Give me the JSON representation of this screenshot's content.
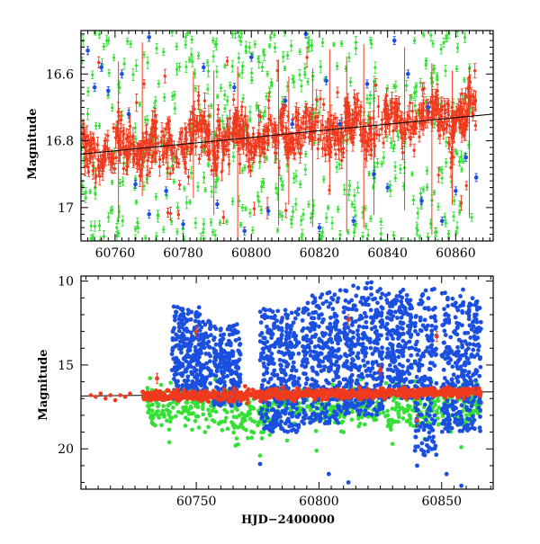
{
  "chart_data": [
    {
      "type": "scatter",
      "title": "",
      "xlabel": "",
      "ylabel": "Magnitude",
      "xlim": [
        60750,
        60871
      ],
      "ylim": [
        17.1,
        16.47
      ],
      "y_inverted": true,
      "x_ticks": [
        60760,
        60780,
        60800,
        60820,
        60840,
        60860
      ],
      "x_minor_step": 2,
      "y_ticks": [
        16.6,
        16.8,
        17
      ],
      "y_tick_labels": [
        "16.6",
        "16.8",
        "17"
      ],
      "y_minor_step": 0.02,
      "colors": {
        "green": "#33e033",
        "blue": "#1a4fe0",
        "red": "#f03a1e",
        "black": "#000000"
      },
      "series": [
        {
          "color": "green",
          "description_points": "dense points with error bars, widely scattered 16.5-17.1",
          "error_bars": true
        },
        {
          "color": "blue",
          "points": [
            [
              60752,
              16.53
            ],
            [
              60754,
              16.64
            ],
            [
              60756,
              16.58
            ],
            [
              60758,
              16.65
            ],
            [
              60762,
              16.6
            ],
            [
              60764,
              16.72
            ],
            [
              60766,
              16.93
            ],
            [
              60770,
              17.02
            ],
            [
              60775,
              16.95
            ],
            [
              60780,
              17.05
            ],
            [
              60786,
              16.58
            ],
            [
              60790,
              16.99
            ],
            [
              60795,
              16.64
            ],
            [
              60800,
              16.55
            ],
            [
              60805,
              17.01
            ],
            [
              60810,
              16.68
            ],
            [
              60812,
              16.75
            ],
            [
              60816,
              16.48
            ],
            [
              60820,
              17.06
            ],
            [
              60822,
              16.62
            ],
            [
              60826,
              16.75
            ],
            [
              60830,
              17.04
            ],
            [
              60834,
              16.63
            ],
            [
              60836,
              16.9
            ],
            [
              60840,
              16.94
            ],
            [
              60842,
              16.5
            ],
            [
              60846,
              16.6
            ],
            [
              60850,
              16.98
            ],
            [
              60852,
              16.7
            ],
            [
              60856,
              17.04
            ],
            [
              60860,
              16.95
            ],
            [
              60863,
              16.85
            ],
            [
              60866,
              16.91
            ],
            [
              60770,
              16.49
            ],
            [
              60798,
              17.07
            ]
          ],
          "error_bars": true
        },
        {
          "color": "red",
          "description_points": "dense band with error bars, mean ~16.82 at 60750 rising to ~16.72 at 60866",
          "error_bars": true
        }
      ],
      "trend_line": {
        "color": "black",
        "points": [
          [
            60750,
            16.84
          ],
          [
            60790,
            16.8
          ],
          [
            60830,
            16.76
          ],
          [
            60871,
            16.72
          ]
        ]
      }
    },
    {
      "type": "scatter",
      "title": "",
      "xlabel": "HJD−2400000",
      "ylabel": "Magnitude",
      "xlim": [
        60703,
        60871
      ],
      "ylim": [
        22.4,
        9.7
      ],
      "y_inverted": true,
      "x_ticks": [
        60750,
        60800,
        60850
      ],
      "x_minor_step": 5,
      "y_ticks": [
        10,
        15,
        20
      ],
      "y_tick_labels": [
        "10",
        "15",
        "20"
      ],
      "y_minor_step": 1,
      "colors": {
        "green": "#33e033",
        "blue": "#1a4fe0",
        "red": "#f03a1e",
        "black": "#000000"
      },
      "series": [
        {
          "color": "red",
          "points_early": [
            [
              60707,
              16.8
            ],
            [
              60709,
              16.9
            ],
            [
              60711,
              16.7
            ],
            [
              60713,
              17.0
            ],
            [
              60715,
              16.8
            ],
            [
              60717,
              17.1
            ],
            [
              60719,
              16.8
            ],
            [
              60721,
              16.9
            ],
            [
              60723,
              16.7
            ]
          ],
          "band_mean": [
            [
              60728,
              16.85
            ],
            [
              60866,
              16.6
            ]
          ],
          "outliers": [
            [
              60734,
              15.8
            ],
            [
              60750,
              13.0
            ],
            [
              60812,
              12.3
            ],
            [
              60825,
              15.3
            ],
            [
              60840,
              18.3
            ],
            [
              60848,
              13.3
            ]
          ]
        },
        {
          "color": "green",
          "band": [
            16.0,
            18.5
          ],
          "x_range": [
            60730,
            60866
          ],
          "outliers": [
            [
              60739,
              19.6
            ],
            [
              60766,
              19.8
            ],
            [
              60776,
              20.4
            ],
            [
              60787,
              19.5
            ],
            [
              60799,
              20.1
            ],
            [
              60810,
              19.0
            ],
            [
              60830,
              19.7
            ],
            [
              60843,
              19.4
            ],
            [
              60858,
              19.9
            ]
          ]
        },
        {
          "color": "blue",
          "clusters": [
            {
              "x_range": [
                60740,
                60756
              ],
              "y_range": [
                11.5,
                17.0
              ]
            },
            {
              "x_range": [
                60757,
                60768
              ],
              "y_range": [
                12.5,
                17.5
              ]
            },
            {
              "x_range": [
                60776,
                60792
              ],
              "y_range": [
                11.5,
                19.0
              ]
            },
            {
              "x_range": [
                60793,
                60809
              ],
              "y_range": [
                10.5,
                18.5
              ]
            },
            {
              "x_range": [
                60810,
                60826
              ],
              "y_range": [
                10.0,
                18.0
              ]
            },
            {
              "x_range": [
                60827,
                60838
              ],
              "y_range": [
                10.5,
                17.0
              ]
            },
            {
              "x_range": [
                60839,
                60848
              ],
              "y_range": [
                10.3,
                20.5
              ]
            },
            {
              "x_range": [
                60850,
                60866
              ],
              "y_range": [
                10.5,
                19.0
              ]
            }
          ],
          "outliers": [
            [
              60776,
              20.9
            ],
            [
              60804,
              21.5
            ],
            [
              60812,
              22.0
            ],
            [
              60840,
              21.0
            ],
            [
              60852,
              21.5
            ],
            [
              60858,
              22.2
            ]
          ]
        }
      ],
      "trend_line": {
        "color": "black",
        "points": [
          [
            60703,
            16.85
          ],
          [
            60871,
            16.6
          ]
        ]
      }
    }
  ]
}
